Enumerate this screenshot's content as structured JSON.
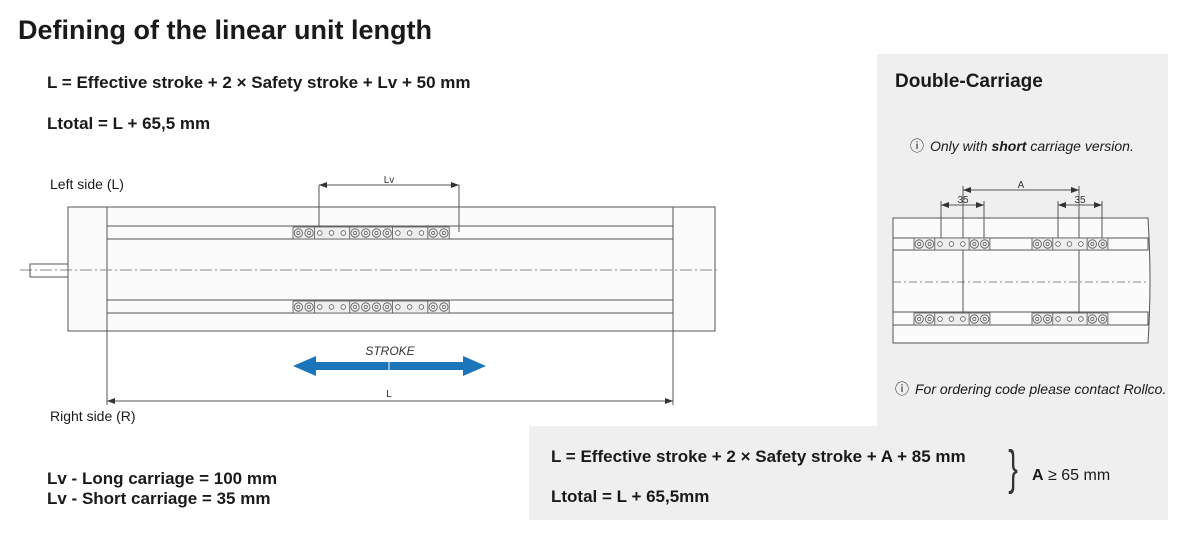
{
  "title": "Defining of the linear unit length",
  "formula_l": "L = Effective stroke + 2 × Safety stroke + Lv + 50 mm",
  "formula_ltotal": "Ltotal = L + 65,5 mm",
  "left_side": "Left side (L)",
  "right_side": "Right side (R)",
  "drawing": {
    "lv_label": "Lv",
    "stroke_label": "STROKE",
    "l_label": "L",
    "stroke_color": "#1a75bb"
  },
  "lv_long": "Lv - Long carriage = 100 mm",
  "lv_short": "Lv - Short carriage = 35 mm",
  "double": {
    "heading": "Double-Carriage",
    "note1_pre": "Only with ",
    "note1_bold": "short",
    "note1_post": " carriage version.",
    "a_label": "A",
    "dim_35_left": "35",
    "dim_35_right": "35",
    "note2": "For ordering code please contact Rollco.",
    "info_icon": "ⓘ",
    "formula_l": "L = Effective stroke + 2 × Safety stroke + A + 85 mm",
    "formula_ltotal": "Ltotal = L + 65,5mm",
    "brace": "}",
    "condition_a": "A",
    "condition_rest": "≥ 65 mm"
  }
}
